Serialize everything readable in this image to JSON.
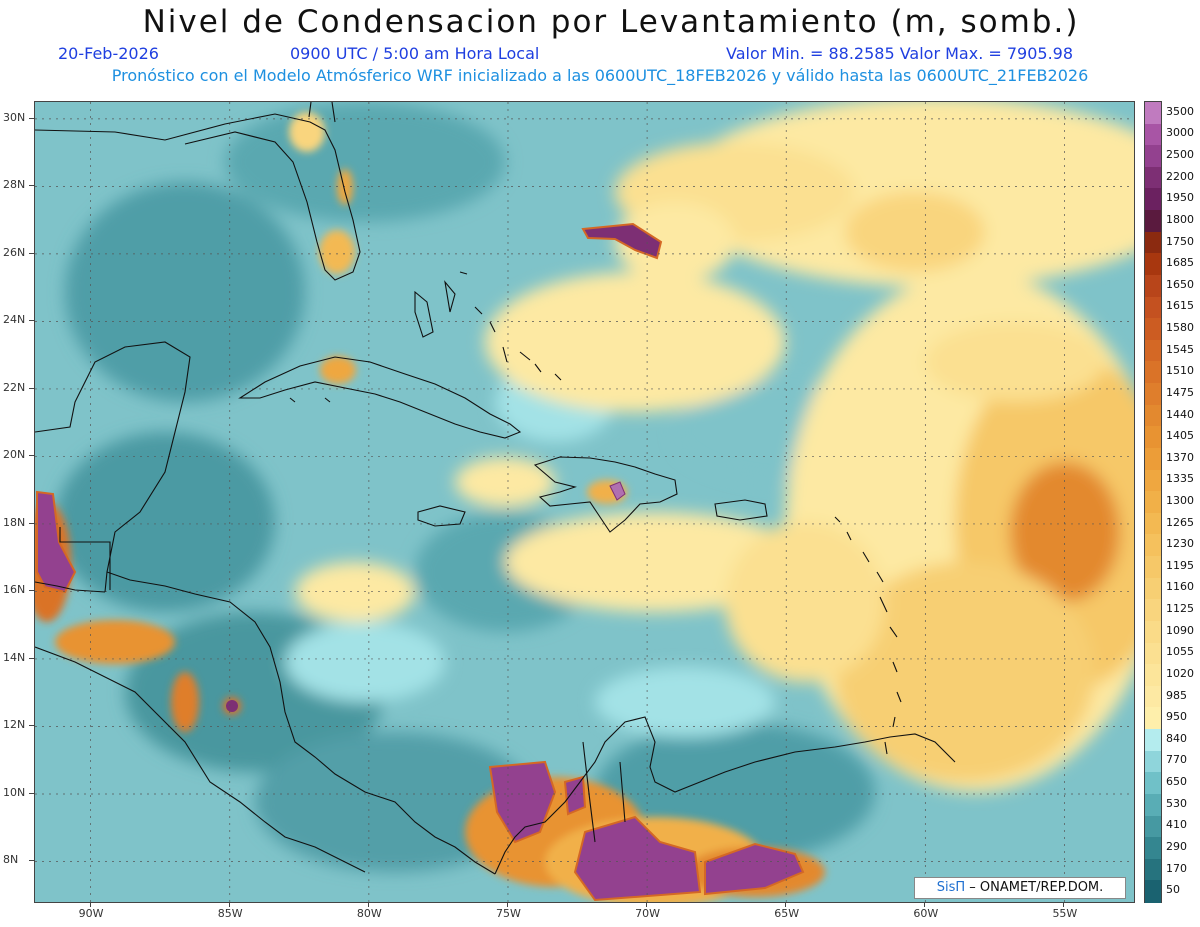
{
  "header": {
    "title": "Nivel de Condensacion por Levantamiento (m, somb.)",
    "date": "20-Feb-2026",
    "time": "0900 UTC / 5:00 am Hora Local",
    "range": "Valor Min. = 88.2585   Valor Max. = 7905.98",
    "model_info": "Pronóstico con el Modelo Atmósferico WRF inicializado a las 0600UTC_18FEB2026 y válido hasta las  0600UTC_21FEB2026"
  },
  "map": {
    "lat_labels": [
      "30N",
      "28N",
      "26N",
      "24N",
      "22N",
      "20N",
      "18N",
      "16N",
      "14N",
      "12N",
      "10N",
      "8N"
    ],
    "lon_labels": [
      "90W",
      "85W",
      "80W",
      "75W",
      "70W",
      "65W",
      "60W",
      "55W"
    ],
    "lat_values": [
      30,
      28,
      26,
      24,
      22,
      20,
      18,
      16,
      14,
      12,
      10,
      8
    ],
    "lon_values": [
      -90,
      -85,
      -80,
      -75,
      -70,
      -65,
      -60,
      -55
    ],
    "lon_range": [
      -92,
      -52.5
    ],
    "lat_range": [
      6.8,
      30.5
    ]
  },
  "colorbar": {
    "labels": [
      "3500",
      "3000",
      "2500",
      "2200",
      "1950",
      "1800",
      "1750",
      "1685",
      "1650",
      "1615",
      "1580",
      "1545",
      "1510",
      "1475",
      "1440",
      "1405",
      "1370",
      "1335",
      "1300",
      "1265",
      "1230",
      "1195",
      "1160",
      "1125",
      "1090",
      "1055",
      "1020",
      "985",
      "950",
      "840",
      "770",
      "650",
      "530",
      "410",
      "290",
      "170",
      "50"
    ],
    "colors": [
      "#c07bbf",
      "#a855a5",
      "#93418f",
      "#7d2f74",
      "#6b2160",
      "#5a1a3e",
      "#8b2a10",
      "#a8370f",
      "#b8451a",
      "#c45120",
      "#cc5c22",
      "#d46825",
      "#da7328",
      "#df7e2c",
      "#e3892f",
      "#e89332",
      "#ec9d38",
      "#efa740",
      "#f1b048",
      "#f3b952",
      "#f5c15d",
      "#f6c868",
      "#f7cf73",
      "#f9d57e",
      "#fadb88",
      "#fbe091",
      "#fce59a",
      "#fde9a3",
      "#feefab",
      "#b4ecee",
      "#8fd5db",
      "#70c1c8",
      "#59adb5",
      "#4699a2",
      "#348690",
      "#26737e",
      "#1a6270"
    ]
  },
  "credit": {
    "brand": "SisΠ",
    "org": "– ONAMET/REP.DOM."
  }
}
